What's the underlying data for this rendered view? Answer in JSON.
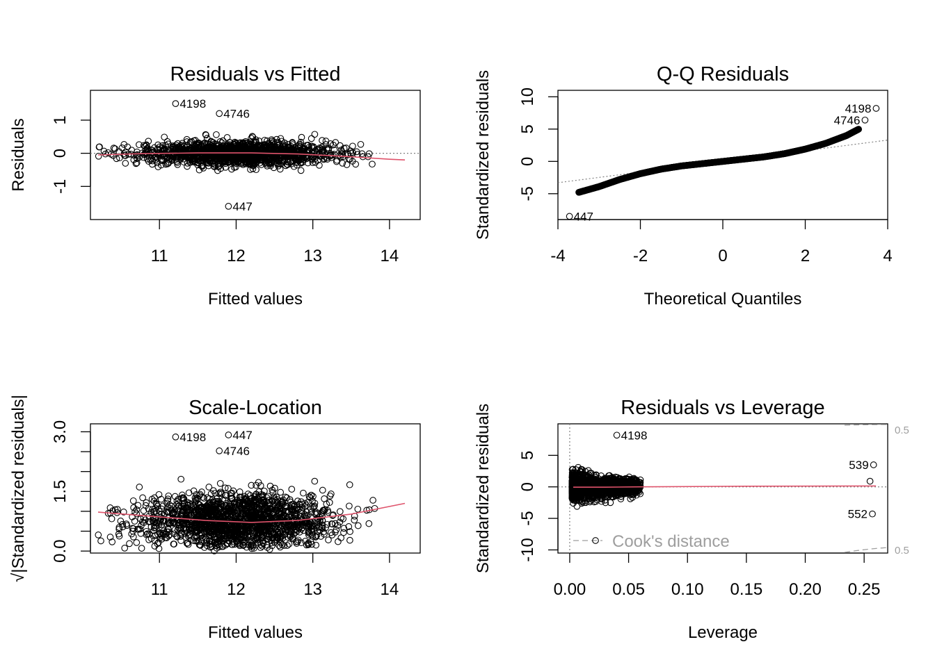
{
  "colors": {
    "smooth": "#DF536B",
    "reference": "#808080",
    "cook": "#9E9E9E",
    "points": "#000000"
  },
  "chart_data": [
    {
      "type": "scatter",
      "id": "residuals-vs-fitted",
      "title": "Residuals vs Fitted",
      "xlabel": "Fitted values",
      "ylabel": "Residuals",
      "xlim": [
        10.1,
        14.4
      ],
      "ylim": [
        -2.0,
        1.9
      ],
      "xticks": [
        11,
        12,
        13,
        14
      ],
      "xtick_labels": [
        "11",
        "12",
        "13",
        "14"
      ],
      "yticks": [
        -1,
        0,
        1
      ],
      "ytick_labels": [
        "-1",
        "0",
        "1"
      ],
      "reference_line": {
        "y": 0,
        "style": "dotted"
      },
      "smooth": {
        "x": [
          10.2,
          10.8,
          11.5,
          12.2,
          12.8,
          13.4,
          14.0,
          14.2
        ],
        "y": [
          -0.05,
          -0.01,
          0.01,
          0.01,
          -0.02,
          -0.09,
          -0.18,
          -0.2
        ]
      },
      "point_cloud": {
        "x_range": [
          10.2,
          14.2
        ],
        "x_center": 12.0,
        "y_spread": 0.2,
        "count": 1500
      },
      "labeled_points": [
        {
          "label": "4198",
          "x": 11.21,
          "y": 1.5
        },
        {
          "label": "4746",
          "x": 11.78,
          "y": 1.2
        },
        {
          "label": "447",
          "x": 11.9,
          "y": -1.6
        }
      ]
    },
    {
      "type": "scatter",
      "id": "qq-residuals",
      "title": "Q-Q Residuals",
      "xlabel": "Theoretical Quantiles",
      "ylabel": "Standardized residuals",
      "xlim": [
        -4,
        4
      ],
      "ylim": [
        -9,
        11
      ],
      "xticks": [
        -4,
        -2,
        0,
        2,
        4
      ],
      "xtick_labels": [
        "-4",
        "-2",
        "0",
        "2",
        "4"
      ],
      "yticks": [
        -5,
        0,
        5,
        10
      ],
      "ytick_labels": [
        "-5",
        "0",
        "5",
        "10"
      ],
      "reference_line": {
        "x1": -4,
        "y1": -3.3,
        "x2": 4,
        "y2": 3.3,
        "style": "dotted"
      },
      "qq_curve": {
        "x": [
          -3.5,
          -3.0,
          -2.5,
          -2.0,
          -1.5,
          -1.0,
          0,
          1.0,
          1.5,
          2.0,
          2.5,
          3.0,
          3.3
        ],
        "y": [
          -4.8,
          -3.9,
          -2.8,
          -1.9,
          -1.2,
          -0.7,
          0,
          0.7,
          1.2,
          1.9,
          2.8,
          4.0,
          5.0
        ]
      },
      "labeled_points": [
        {
          "label": "4198",
          "x": 3.72,
          "y": 8.2
        },
        {
          "label": "4746",
          "x": 3.45,
          "y": 6.4
        },
        {
          "label": "447",
          "x": -3.72,
          "y": -8.5
        }
      ]
    },
    {
      "type": "scatter",
      "id": "scale-location",
      "title": "Scale-Location",
      "xlabel": "Fitted values",
      "ylabel": "√|Standardized residuals|",
      "xlim": [
        10.1,
        14.4
      ],
      "ylim": [
        -0.05,
        3.2
      ],
      "xticks": [
        11,
        12,
        13,
        14
      ],
      "xtick_labels": [
        "11",
        "12",
        "13",
        "14"
      ],
      "yticks": [
        0.0,
        0.5,
        1.0,
        1.5,
        2.0,
        2.5,
        3.0
      ],
      "ytick_labels": [
        "0.0",
        "",
        "",
        "1.5",
        "",
        "",
        "3.0"
      ],
      "smooth": {
        "x": [
          10.2,
          11.0,
          11.6,
          12.2,
          12.8,
          13.5,
          14.2
        ],
        "y": [
          0.98,
          0.86,
          0.77,
          0.72,
          0.77,
          0.93,
          1.2
        ]
      },
      "point_cloud": {
        "x_range": [
          10.2,
          14.2
        ],
        "x_center": 12.0,
        "count": 1700
      },
      "labeled_points": [
        {
          "label": "4198",
          "x": 11.21,
          "y": 2.87
        },
        {
          "label": "447",
          "x": 11.9,
          "y": 2.92
        },
        {
          "label": "4746",
          "x": 11.78,
          "y": 2.52
        }
      ]
    },
    {
      "type": "scatter",
      "id": "residuals-vs-leverage",
      "title": "Residuals vs Leverage",
      "xlabel": "Leverage",
      "ylabel": "Standardized residuals",
      "xlim": [
        -0.01,
        0.27
      ],
      "ylim": [
        -10.5,
        10
      ],
      "xticks": [
        0.0,
        0.05,
        0.1,
        0.15,
        0.2,
        0.25
      ],
      "xtick_labels": [
        "0.00",
        "0.05",
        "0.10",
        "0.15",
        "0.20",
        "0.25"
      ],
      "yticks": [
        -10,
        -5,
        0,
        5
      ],
      "ytick_labels": [
        "-10",
        "-5",
        "0",
        "5"
      ],
      "reference_lines": [
        {
          "y": 0,
          "style": "dotted"
        },
        {
          "x": 0,
          "style": "dotted"
        }
      ],
      "smooth": {
        "x": [
          0.003,
          0.03,
          0.06,
          0.15,
          0.26
        ],
        "y": [
          -0.05,
          -0.05,
          0.0,
          0.1,
          0.15
        ]
      },
      "point_cloud": {
        "x_range": [
          0.002,
          0.06
        ],
        "count": 1500
      },
      "extra_points": [
        {
          "x": 0.255,
          "y": 0.9
        }
      ],
      "cook_contour_level": "0.5",
      "cook_legend": "Cook's distance",
      "labeled_points": [
        {
          "label": "4198",
          "x": 0.04,
          "y": 8.2
        },
        {
          "label": "539",
          "x": 0.258,
          "y": 3.5
        },
        {
          "label": "552",
          "x": 0.257,
          "y": -4.3
        }
      ]
    }
  ]
}
